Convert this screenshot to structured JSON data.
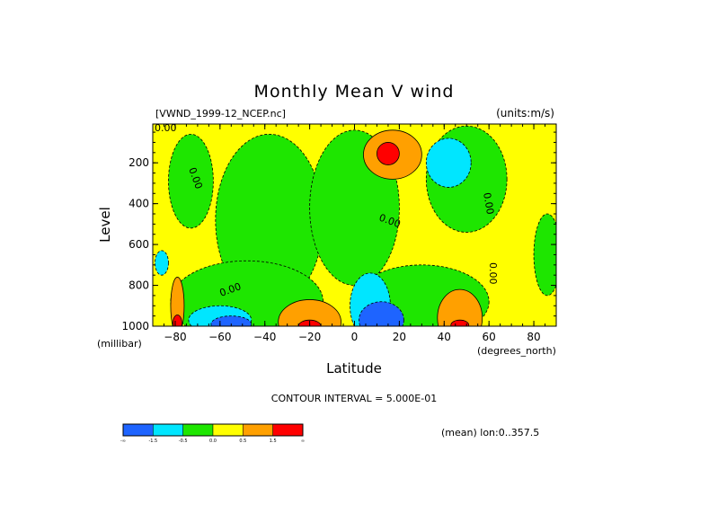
{
  "chart_data": {
    "type": "heatmap",
    "title": "Monthly Mean V wind",
    "dataset_label": "[VWND_1999-12_NCEP.nc]",
    "units_label": "(units:m/s)",
    "xlabel": "Latitude",
    "x_units_label": "(degrees_north)",
    "ylabel": "Level",
    "y_units_label": "(millibar)",
    "xlim": [
      -90,
      90
    ],
    "ylim": [
      10,
      1000
    ],
    "y_inverted": true,
    "x_ticks": [
      -80,
      -60,
      -40,
      -20,
      0,
      20,
      40,
      60,
      80
    ],
    "y_ticks": [
      200,
      400,
      600,
      800,
      1000
    ],
    "contour_interval_label": "CONTOUR INTERVAL = 5.000E-01",
    "mean_label": "(mean) lon:0..357.5",
    "contour_labels": [
      "0.00",
      "0.00",
      "0.00",
      "0.00",
      "0.00",
      "0.00"
    ],
    "levels": [
      {
        "from": null,
        "to": -1.5,
        "color": "#1e64ff"
      },
      {
        "from": -1.5,
        "to": -0.5,
        "color": "#00e6ff"
      },
      {
        "from": -0.5,
        "to": 0.0,
        "color": "#1ee600"
      },
      {
        "from": 0.0,
        "to": 0.5,
        "color": "#ffff00"
      },
      {
        "from": 0.5,
        "to": 1.5,
        "color": "#ffa000"
      },
      {
        "from": 1.5,
        "to": null,
        "color": "#ff0000"
      }
    ],
    "colorbar_labels": [
      "-∞",
      "-1.5",
      "-0.5",
      "0.0",
      "0.5",
      "1.5",
      "∞"
    ],
    "regions": [
      {
        "name": "green-west-pocket",
        "cx": -73,
        "cy": 290,
        "rx": 10,
        "ry": 230,
        "value": -0.2
      },
      {
        "name": "green-mid-band",
        "cx": -38,
        "cy": 480,
        "rx": 24,
        "ry": 420,
        "value": -0.2
      },
      {
        "name": "green-tropical-column",
        "cx": 0,
        "cy": 420,
        "rx": 20,
        "ry": 380,
        "value": -0.2
      },
      {
        "name": "green-upper-east",
        "cx": 50,
        "cy": 280,
        "rx": 18,
        "ry": 260,
        "value": -0.2
      },
      {
        "name": "green-lower-south",
        "cx": -48,
        "cy": 880,
        "rx": 34,
        "ry": 200,
        "value": -0.2
      },
      {
        "name": "green-lower-east",
        "cx": 30,
        "cy": 880,
        "rx": 30,
        "ry": 180,
        "value": -0.2
      },
      {
        "name": "green-far-east",
        "cx": 86,
        "cy": 650,
        "rx": 6,
        "ry": 200,
        "value": -0.2
      },
      {
        "name": "orange-upper",
        "cx": 17,
        "cy": 160,
        "rx": 13,
        "ry": 120,
        "value": 1.0
      },
      {
        "name": "red-upper-core",
        "cx": 15,
        "cy": 155,
        "rx": 5,
        "ry": 55,
        "value": 2.0
      },
      {
        "name": "cyan-upper-east",
        "cx": 42,
        "cy": 200,
        "rx": 10,
        "ry": 120,
        "value": -0.9
      },
      {
        "name": "cyan-lower-tropics",
        "cx": 7,
        "cy": 900,
        "rx": 9,
        "ry": 160,
        "value": -0.9
      },
      {
        "name": "blue-lower-tropics",
        "cx": 12,
        "cy": 970,
        "rx": 10,
        "ry": 90,
        "value": -1.8
      },
      {
        "name": "cyan-lower-south",
        "cx": -60,
        "cy": 970,
        "rx": 14,
        "ry": 70,
        "value": -0.9
      },
      {
        "name": "blue-lower-south",
        "cx": -55,
        "cy": 990,
        "rx": 9,
        "ry": 40,
        "value": -1.8
      },
      {
        "name": "orange-lower-subtropics",
        "cx": -20,
        "cy": 980,
        "rx": 14,
        "ry": 110,
        "value": 1.0
      },
      {
        "name": "red-lower-subtropics",
        "cx": -20,
        "cy": 1000,
        "rx": 5,
        "ry": 30,
        "value": 2.0
      },
      {
        "name": "orange-lower-east",
        "cx": 47,
        "cy": 960,
        "rx": 10,
        "ry": 140,
        "value": 1.0
      },
      {
        "name": "red-lower-east",
        "cx": 47,
        "cy": 995,
        "rx": 4,
        "ry": 25,
        "value": 2.0
      },
      {
        "name": "orange-lower-west",
        "cx": -79,
        "cy": 900,
        "rx": 3,
        "ry": 140,
        "value": 1.0
      },
      {
        "name": "red-lower-west",
        "cx": -79,
        "cy": 985,
        "rx": 2,
        "ry": 40,
        "value": 2.0
      },
      {
        "name": "cyan-west-edge",
        "cx": -86,
        "cy": 690,
        "rx": 3,
        "ry": 60,
        "value": -0.9
      }
    ]
  }
}
